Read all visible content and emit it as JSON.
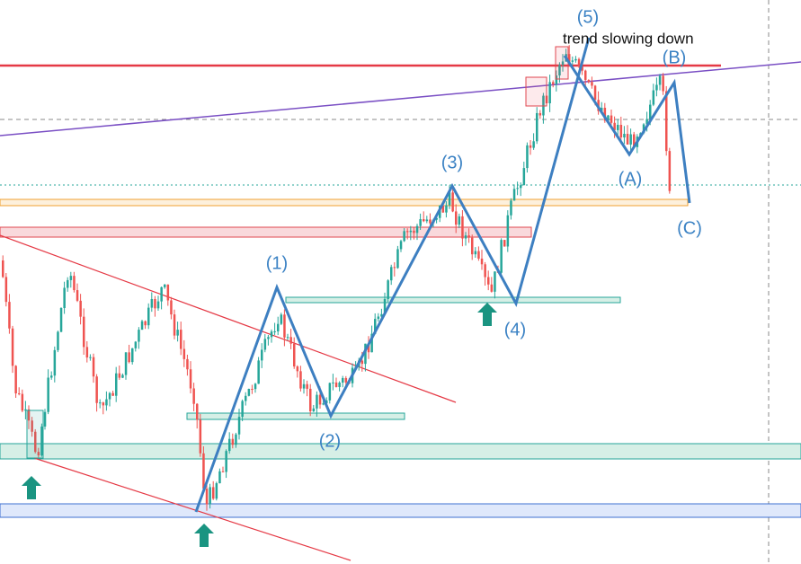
{
  "wave_labels": [
    "(1)",
    "(2)",
    "(3)",
    "(4)",
    "(5)",
    "(A)",
    "(B)",
    "(C)"
  ],
  "note": "trend slowing down"
}
